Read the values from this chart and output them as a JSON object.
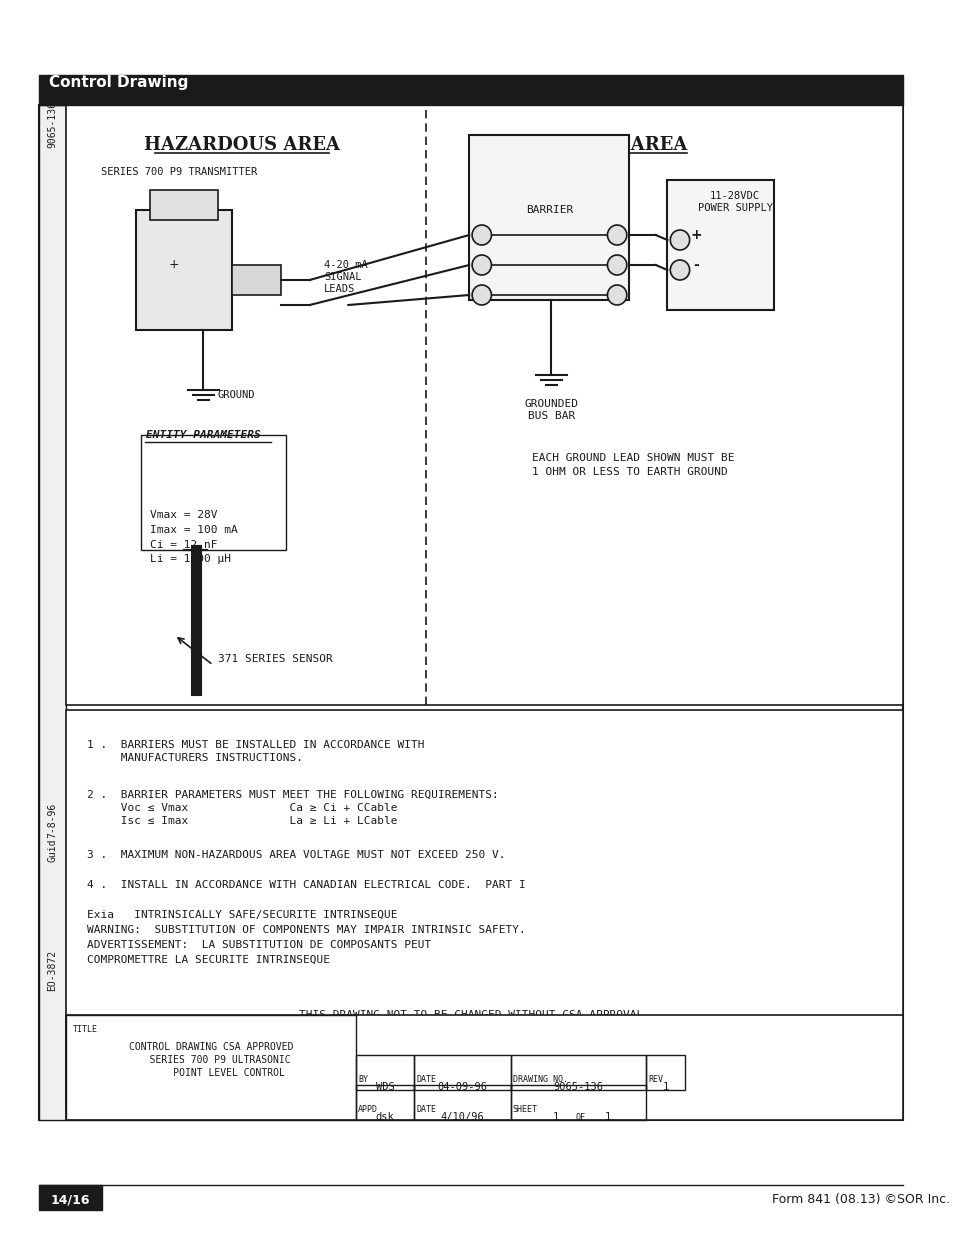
{
  "page_bg": "#ffffff",
  "header_bg": "#1a1a1a",
  "header_text": "Control Drawing",
  "header_text_color": "#ffffff",
  "footer_left_bg": "#1a1a1a",
  "footer_left_text": "14/16",
  "footer_left_text_color": "#ffffff",
  "footer_right_text": "Form 841 (08.13) ©SOR Inc.",
  "footer_right_color": "#1a1a1a",
  "main_border_color": "#1a1a1a",
  "drawing_title": "HAZARDOUS AREA",
  "safe_area_title": "SAFE AREA",
  "series_label": "SERIES 700 P9 TRANSMITTER",
  "signal_label": "4-20 mA\nSIGNAL\nLEADS",
  "ground_label": "GROUND",
  "entity_label": "ENTITY PARAMETERS",
  "entity_params": "Vmax = 28V\nImax = 100 mA\nCi = 12 nF\nLi = 1600 μH",
  "sensor_label": "371 SERIES SENSOR",
  "barrier_label": "BARRIER",
  "power_label": "11-28VDC\nPOWER SUPPLY",
  "grounded_label": "GROUNDED\nBUS BAR",
  "ground_note": "EACH GROUND LEAD SHOWN MUST BE\n1 OHM OR LESS TO EARTH GROUND",
  "note1": "1 .  BARRIERS MUST BE INSTALLED IN ACCORDANCE WITH\n     MANUFACTURERS INSTRUCTIONS.",
  "note2": "2 .  BARRIER PARAMETERS MUST MEET THE FOLLOWING REQUIREMENTS:\n     Voc ≤ Vmax               Ca ≥ Ci + CCable\n     Isc ≤ Imax               La ≥ Li + LCable",
  "note3": "3 .  MAXIMUM NON-HAZARDOUS AREA VOLTAGE MUST NOT EXCEED 250 V.",
  "note4": "4 .  INSTALL IN ACCORDANCE WITH CANADIAN ELECTRICAL CODE.  PART I",
  "note5_line1": "Exia   INTRINSICALLY SAFE/SECURITE INTRINSEQUE",
  "note5_line2": "WARNING:  SUBSTITUTION OF COMPONENTS MAY IMPAIR INTRINSIC SAFETY.",
  "note5_line3": "ADVERTISSEMENT:  LA SUBSTITUTION DE COMPOSANTS PEUT",
  "note5_line4": "COMPROMETTRE LA SECURITE INTRINSEQUE",
  "drawing_note": "THIS DRAWING NOT TO BE CHANGED WITHOUT CSA APPROVAL.",
  "table_title": "CONTROL DRAWING CSA APPROVED\n   SERIES 700 P9 ULTRASONIC\n      POINT LEVEL CONTROL",
  "table_by": "WDS",
  "table_date1": "04-09-96",
  "table_drawing_no": "9065-136",
  "table_rev": "1",
  "table_appd": "dsk",
  "table_date2": "4/10/96",
  "table_sheet": "1",
  "table_of": "1",
  "side_label_top": "9065-136",
  "side_label_mid": "7-8-96",
  "side_label_mid2": "Guid",
  "side_label_bot": "EO-3872"
}
